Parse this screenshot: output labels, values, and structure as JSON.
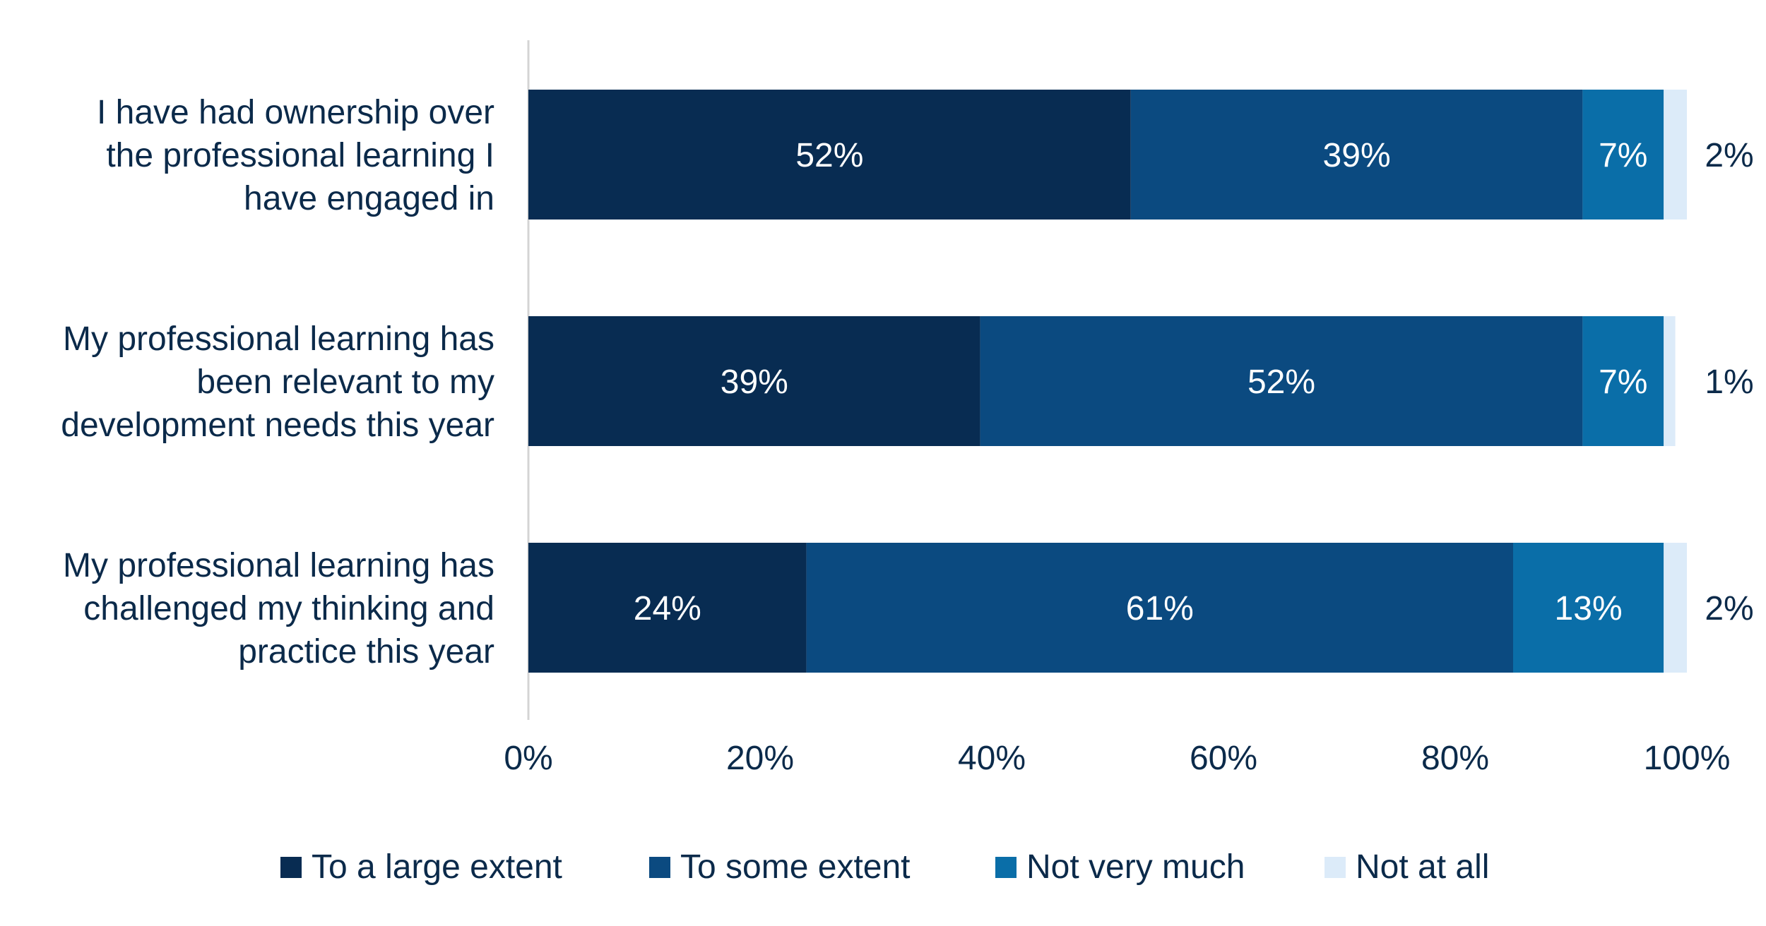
{
  "chart_data": {
    "type": "bar",
    "orientation": "horizontal",
    "stacked": true,
    "categories": [
      [
        "I have had ownership over",
        "the professional learning I",
        "have engaged in"
      ],
      [
        "My professional learning has",
        "been relevant to my",
        "development needs this year"
      ],
      [
        "My professional learning has",
        "challenged my thinking and",
        "practice this year"
      ]
    ],
    "series": [
      {
        "name": "To a large extent",
        "color": "#082c52",
        "values": [
          52,
          39,
          24
        ],
        "labels": [
          "52%",
          "39%",
          "24%"
        ]
      },
      {
        "name": "To some extent",
        "color": "#0b4a80",
        "values": [
          39,
          52,
          61
        ],
        "labels": [
          "39%",
          "52%",
          "61%"
        ]
      },
      {
        "name": "Not very much",
        "color": "#0a6ea8",
        "values": [
          7,
          7,
          13
        ],
        "labels": [
          "7%",
          "7%",
          "13%"
        ]
      },
      {
        "name": "Not at all",
        "color": "#dcebf9",
        "values": [
          2,
          1,
          2
        ],
        "labels": [
          "2%",
          "1%",
          "2%"
        ]
      }
    ],
    "xlim": [
      0,
      100
    ],
    "xticks": [
      "0%",
      "20%",
      "40%",
      "60%",
      "80%",
      "100%"
    ],
    "grid": false,
    "legend_position": "bottom"
  }
}
